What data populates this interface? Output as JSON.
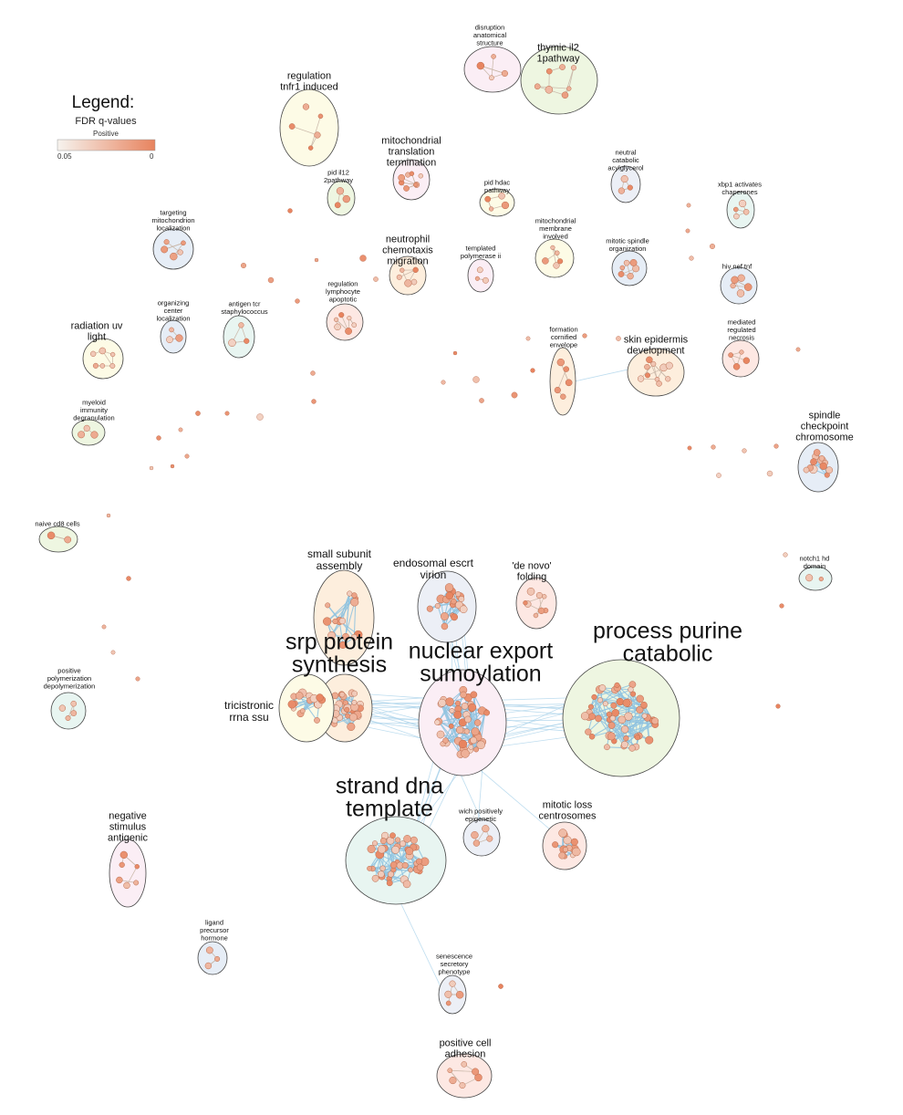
{
  "legend": {
    "title": "Legend:",
    "subtitle": "FDR q-values",
    "series": "Positive",
    "min_label": "0.05",
    "max_label": "0",
    "color_low": "#f6f3ee",
    "color_high": "#e8835e"
  },
  "colors": {
    "node_fill": "#e9906d",
    "node_stroke": "#b86a4c",
    "edge_intra": "#8fc3e0",
    "edge_inter": "#a9d2ea",
    "cluster_stroke": "#444444"
  },
  "clusters": [
    {
      "id": "disruption",
      "label": [
        "disruption",
        "anatomical",
        "structure"
      ],
      "fill": "#fbeef5",
      "size": "xs"
    },
    {
      "id": "thymic",
      "label": [
        "thymic il2",
        "1pathway"
      ],
      "fill": "#eef6e1",
      "size": "s"
    },
    {
      "id": "tnfr1",
      "label": [
        "regulation",
        "tnfr1 induced"
      ],
      "fill": "#fdfbe6",
      "size": "s"
    },
    {
      "id": "mito-transl",
      "label": [
        "mitochondrial",
        "translation",
        "termination"
      ],
      "fill": "#fbeef5",
      "size": "s"
    },
    {
      "id": "pid-il12",
      "label": [
        "pid il12",
        "2pathway"
      ],
      "fill": "#eef6e1",
      "size": "xs"
    },
    {
      "id": "pid-hdac",
      "label": [
        "pid hdac",
        "pathway"
      ],
      "fill": "#fdfbe6",
      "size": "xs"
    },
    {
      "id": "neutral-cat",
      "label": [
        "neutral",
        "catabolic",
        "acylglycerol"
      ],
      "fill": "#eceff6",
      "size": "xs"
    },
    {
      "id": "xbp1",
      "label": [
        "xbp1 activates",
        "chaperones"
      ],
      "fill": "#e8f5f1",
      "size": "xs"
    },
    {
      "id": "targeting-mito",
      "label": [
        "targeting",
        "mitochondrion",
        "localization"
      ],
      "fill": "#e6edf6",
      "size": "xs"
    },
    {
      "id": "neutrophil",
      "label": [
        "neutrophil",
        "chemotaxis",
        "migration"
      ],
      "fill": "#fdeedd",
      "size": "s"
    },
    {
      "id": "templated-pol",
      "label": [
        "templated",
        "polymerase ii"
      ],
      "fill": "#fbeef5",
      "size": "xs"
    },
    {
      "id": "mito-membrane",
      "label": [
        "mitochondrial",
        "membrane",
        "involved"
      ],
      "fill": "#fdfbe6",
      "size": "xs"
    },
    {
      "id": "mitotic-spindle-org",
      "label": [
        "mitotic spindle",
        "organization"
      ],
      "fill": "#e6edf6",
      "size": "xs"
    },
    {
      "id": "hiv-nef",
      "label": [
        "hiv nef tnf"
      ],
      "fill": "#e6edf6",
      "size": "xs"
    },
    {
      "id": "reg-lympho",
      "label": [
        "regulation",
        "lymphocyte",
        "apoptotic"
      ],
      "fill": "#fde8e3",
      "size": "xs"
    },
    {
      "id": "organizing-center",
      "label": [
        "organizing",
        "center",
        "localization"
      ],
      "fill": "#e6edf6",
      "size": "xs"
    },
    {
      "id": "antigen-tcr",
      "label": [
        "antigen tcr",
        "staphylococcus"
      ],
      "fill": "#e8f5f1",
      "size": "xs"
    },
    {
      "id": "radiation",
      "label": [
        "radiation uv",
        "light"
      ],
      "fill": "#fdfbe6",
      "size": "s"
    },
    {
      "id": "formation-cornified",
      "label": [
        "formation",
        "cornified",
        "envelope"
      ],
      "fill": "#fdeedd",
      "size": "xs"
    },
    {
      "id": "skin-epidermis",
      "label": [
        "skin epidermis",
        "development"
      ],
      "fill": "#fdeedd",
      "size": "s"
    },
    {
      "id": "mediated-necrosis",
      "label": [
        "mediated",
        "regulated",
        "necrosis"
      ],
      "fill": "#fde8e3",
      "size": "xs"
    },
    {
      "id": "myeloid",
      "label": [
        "myeloid",
        "immunity",
        "degranulation"
      ],
      "fill": "#eef6e1",
      "size": "xs"
    },
    {
      "id": "spindle-checkpoint",
      "label": [
        "spindle",
        "checkpoint",
        "chromosome"
      ],
      "fill": "#e6edf6",
      "size": "s"
    },
    {
      "id": "naive-cd8",
      "label": [
        "naive cd8 cells"
      ],
      "fill": "#eef6e1",
      "size": "xs"
    },
    {
      "id": "small-subunit",
      "label": [
        "small subunit",
        "assembly"
      ],
      "fill": "#fdeedd",
      "size": "m"
    },
    {
      "id": "endosomal-escrt",
      "label": [
        "endosomal escrt",
        "virion"
      ],
      "fill": "#eceff6",
      "size": "m"
    },
    {
      "id": "de-novo",
      "label": [
        "'de novo'",
        "folding"
      ],
      "fill": "#fde8e3",
      "size": "s"
    },
    {
      "id": "notch1",
      "label": [
        "notch1 hd",
        "domain"
      ],
      "fill": "#e8f5f1",
      "size": "xs"
    },
    {
      "id": "srp-protein",
      "label": [
        "srp protein",
        "synthesis"
      ],
      "fill": "#fdeedd",
      "size": "xl"
    },
    {
      "id": "tricistronic",
      "label": [
        "tricistronic",
        "rrna ssu"
      ],
      "fill": "#fdfbe6",
      "size": "m"
    },
    {
      "id": "nuclear-export",
      "label": [
        "nuclear export",
        "sumoylation"
      ],
      "fill": "#fbeef5",
      "size": "xl"
    },
    {
      "id": "purine",
      "label": [
        "process purine",
        "catabolic"
      ],
      "fill": "#eef6e1",
      "size": "xl"
    },
    {
      "id": "positive-polym",
      "label": [
        "positive",
        "polymerization",
        "depolymerization"
      ],
      "fill": "#e8f5f1",
      "size": "xs"
    },
    {
      "id": "strand-dna",
      "label": [
        "strand dna",
        "template"
      ],
      "fill": "#e8f5f1",
      "size": "xl"
    },
    {
      "id": "wich",
      "label": [
        "wich positively",
        "epigenetic"
      ],
      "fill": "#eceff6",
      "size": "xs"
    },
    {
      "id": "mitotic-loss",
      "label": [
        "mitotic loss",
        "centrosomes"
      ],
      "fill": "#fde8e3",
      "size": "s"
    },
    {
      "id": "negative-stimulus",
      "label": [
        "negative",
        "stimulus",
        "antigenic"
      ],
      "fill": "#fbeef5",
      "size": "s"
    },
    {
      "id": "ligand-precursor",
      "label": [
        "ligand",
        "precursor",
        "hormone"
      ],
      "fill": "#e6edf6",
      "size": "xs"
    },
    {
      "id": "senescence",
      "label": [
        "senescence",
        "secretory",
        "phenotype"
      ],
      "fill": "#eceff6",
      "size": "xs"
    },
    {
      "id": "positive-cell-adhesion",
      "label": [
        "positive cell",
        "adhesion"
      ],
      "fill": "#fde8e3",
      "size": "s"
    }
  ]
}
